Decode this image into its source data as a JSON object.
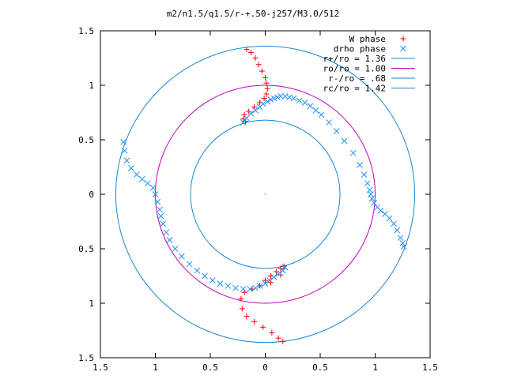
{
  "chart_data": {
    "type": "scatter",
    "title": "m2/n1.5/q1.5/r-+.50-j257/M3.0/512",
    "xlabel": "",
    "ylabel": "",
    "xlim": [
      -1.5,
      1.5
    ],
    "ylim": [
      -1.5,
      1.5
    ],
    "x_ticks": [
      {
        "value": -1.5,
        "label": "1.5"
      },
      {
        "value": -1.0,
        "label": "1"
      },
      {
        "value": -0.5,
        "label": "0.5"
      },
      {
        "value": 0.0,
        "label": "0"
      },
      {
        "value": 0.5,
        "label": "0.5"
      },
      {
        "value": 1.0,
        "label": "1"
      },
      {
        "value": 1.5,
        "label": "1.5"
      }
    ],
    "y_ticks": [
      {
        "value": 1.5,
        "label": "1.5"
      },
      {
        "value": 1.0,
        "label": "1"
      },
      {
        "value": 0.5,
        "label": "0.5"
      },
      {
        "value": 0.0,
        "label": "0"
      },
      {
        "value": -0.5,
        "label": "0.5"
      },
      {
        "value": -1.0,
        "label": "1"
      },
      {
        "value": -1.5,
        "label": "1.5"
      }
    ],
    "grid": false,
    "legend_position": "top-right",
    "legend": [
      {
        "label": "W phase",
        "marker": "plus",
        "color": "#ff0000"
      },
      {
        "label": "drho phase",
        "marker": "cross",
        "color": "#1e90ff"
      },
      {
        "label": "r+/ro = 1.36",
        "marker": "line",
        "color": "#1c86ce"
      },
      {
        "label": "ro/ro = 1.00",
        "marker": "line",
        "color": "#c000c0"
      },
      {
        "label": "r-/ro = .68",
        "marker": "line",
        "color": "#1c86ce"
      },
      {
        "label": "rc/ro = 1.42",
        "marker": "line",
        "color": "#1c86ce"
      }
    ],
    "circles": [
      {
        "name": "r+/ro = 1.36",
        "radius": 1.36,
        "color": "#1c86ce"
      },
      {
        "name": "ro/ro = 1.00",
        "radius": 1.0,
        "color": "#c000c0"
      },
      {
        "name": "r-/ro = .68",
        "radius": 0.68,
        "color": "#1c86ce"
      }
    ],
    "series": [
      {
        "name": "W phase",
        "marker": "plus",
        "color": "#ff0000",
        "x": [
          -0.17,
          -0.13,
          -0.09,
          -0.06,
          -0.03,
          0.0,
          0.01,
          0.02,
          0.01,
          -0.01,
          -0.05,
          -0.1,
          -0.15,
          -0.19,
          -0.2,
          -0.18,
          0.05,
          0.14,
          0.17,
          0.14,
          0.1,
          0.05,
          0.0,
          -0.05,
          -0.12,
          -0.19,
          -0.22,
          -0.21,
          -0.17,
          -0.1,
          -0.02,
          0.06,
          0.12,
          0.16
        ],
        "y": [
          1.33,
          1.3,
          1.25,
          1.19,
          1.13,
          1.07,
          1.02,
          0.97,
          0.92,
          0.88,
          0.84,
          0.8,
          0.76,
          0.73,
          0.69,
          0.67,
          -0.81,
          -0.74,
          -0.66,
          -0.68,
          -0.71,
          -0.75,
          -0.79,
          -0.84,
          -0.87,
          -0.9,
          -0.96,
          -1.05,
          -1.12,
          -1.17,
          -1.22,
          -1.27,
          -1.32,
          -1.35
        ]
      },
      {
        "name": "drho phase",
        "marker": "cross",
        "color": "#1e90ff",
        "x": [
          -0.2,
          -0.17,
          -0.13,
          -0.09,
          -0.05,
          -0.02,
          0.02,
          0.05,
          0.08,
          0.11,
          0.14,
          0.18,
          0.22,
          0.26,
          0.31,
          0.36,
          0.41,
          0.46,
          0.51,
          0.58,
          0.65,
          0.72,
          0.8,
          0.86,
          0.9,
          0.93,
          0.95,
          0.96,
          0.97,
          0.99,
          1.02,
          1.05,
          1.09,
          1.13,
          1.17,
          1.2,
          1.23,
          1.25,
          1.26,
          -1.29,
          -1.28,
          -1.26,
          -1.22,
          -1.17,
          -1.12,
          -1.07,
          -1.02,
          -1.0,
          -0.98,
          -0.96,
          -0.95,
          -0.93,
          -0.9,
          -0.87,
          -0.82,
          -0.76,
          -0.69,
          -0.62,
          -0.55,
          -0.48,
          -0.41,
          -0.34,
          -0.27,
          -0.2,
          -0.14,
          -0.09,
          -0.05,
          0.0,
          0.04,
          0.08,
          0.12,
          0.16,
          0.18
        ],
        "y": [
          0.66,
          0.7,
          0.74,
          0.77,
          0.8,
          0.83,
          0.85,
          0.87,
          0.88,
          0.89,
          0.9,
          0.9,
          0.89,
          0.88,
          0.86,
          0.84,
          0.81,
          0.77,
          0.73,
          0.66,
          0.58,
          0.49,
          0.38,
          0.27,
          0.18,
          0.1,
          0.04,
          0.0,
          -0.04,
          -0.08,
          -0.12,
          -0.15,
          -0.18,
          -0.22,
          -0.27,
          -0.33,
          -0.4,
          -0.45,
          -0.48,
          0.48,
          0.4,
          0.31,
          0.24,
          0.18,
          0.14,
          0.1,
          0.06,
          0.0,
          -0.07,
          -0.14,
          -0.2,
          -0.27,
          -0.35,
          -0.42,
          -0.5,
          -0.57,
          -0.64,
          -0.7,
          -0.75,
          -0.79,
          -0.82,
          -0.84,
          -0.86,
          -0.87,
          -0.87,
          -0.86,
          -0.84,
          -0.82,
          -0.79,
          -0.76,
          -0.73,
          -0.7,
          -0.67
        ]
      }
    ],
    "center_marker": {
      "x": 0.0,
      "y": 0.0
    }
  }
}
